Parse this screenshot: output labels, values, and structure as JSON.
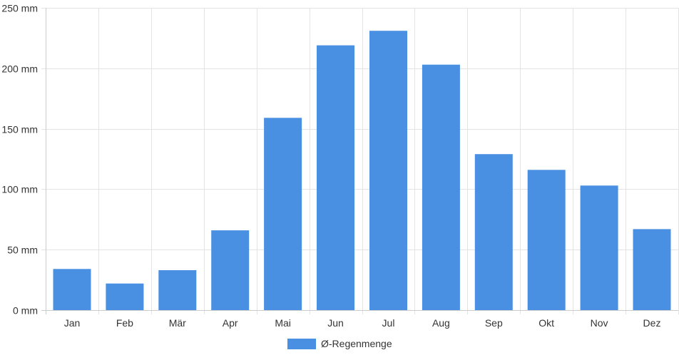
{
  "chart_data": {
    "type": "bar",
    "categories": [
      "Jan",
      "Feb",
      "Mär",
      "Apr",
      "Mai",
      "Jun",
      "Jul",
      "Aug",
      "Sep",
      "Okt",
      "Nov",
      "Dez"
    ],
    "series": [
      {
        "name": "Ø-Regenmenge",
        "values": [
          34,
          22,
          33,
          66,
          159,
          219,
          231,
          203,
          129,
          116,
          103,
          67
        ],
        "color": "#4a90e2"
      }
    ],
    "yticks": [
      "0 mm",
      "50 mm",
      "100 mm",
      "150 mm",
      "200 mm",
      "250 mm"
    ],
    "ylim": [
      0,
      250
    ],
    "grid": true,
    "legend": "bottom-center"
  }
}
